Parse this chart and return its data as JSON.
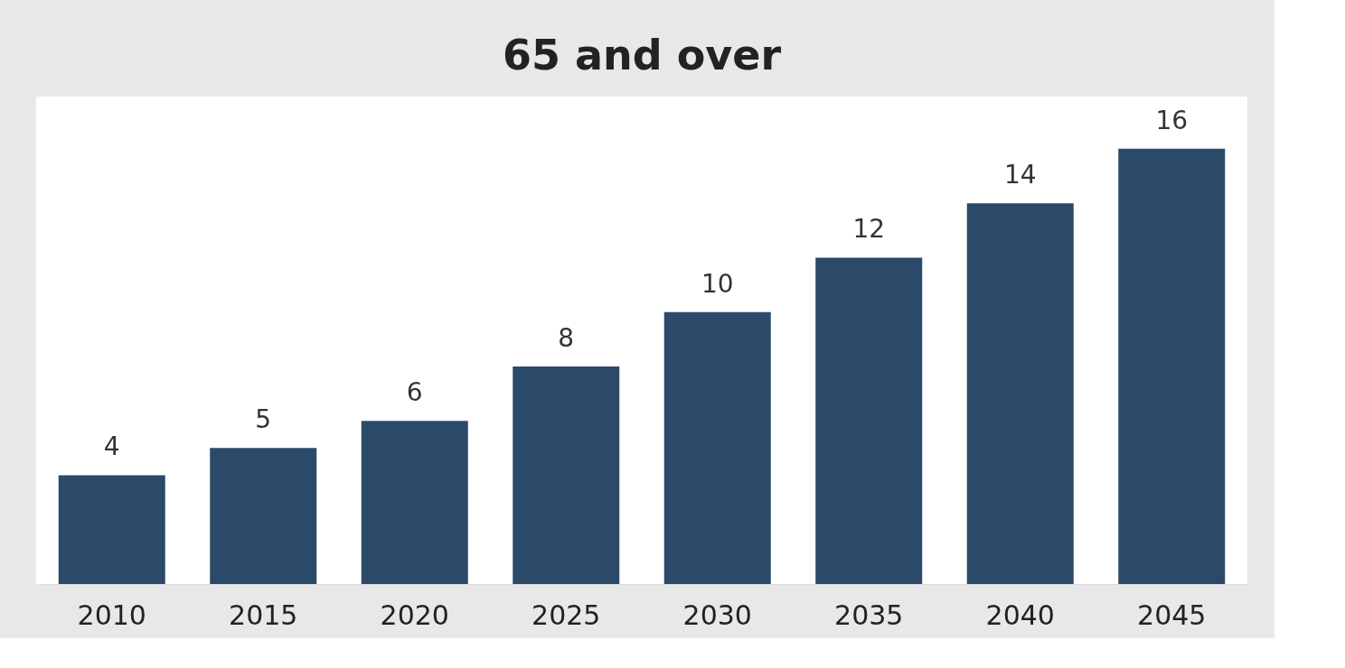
{
  "chart_data": {
    "type": "bar",
    "title": "65 and over",
    "categories": [
      "2010",
      "2015",
      "2020",
      "2025",
      "2030",
      "2035",
      "2040",
      "2045"
    ],
    "values": [
      4,
      5,
      6,
      8,
      10,
      12,
      14,
      16
    ],
    "color": "#2b4a6a",
    "data_labels": true,
    "grid": false
  }
}
